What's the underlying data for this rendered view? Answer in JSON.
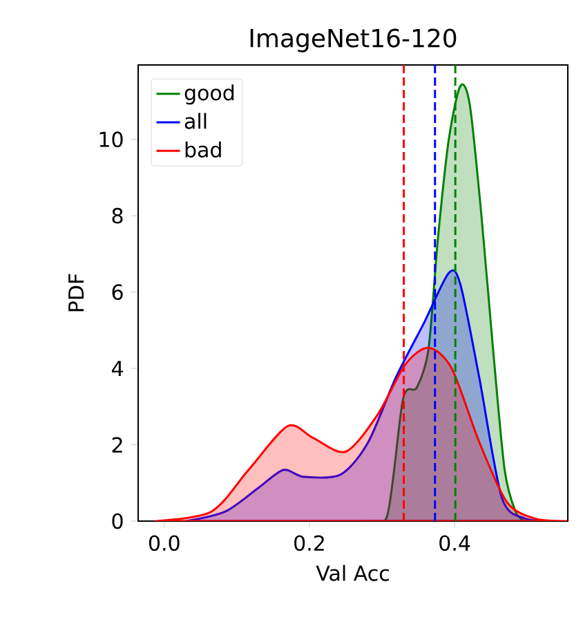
{
  "chart_data": {
    "type": "area",
    "title": "ImageNet16-120",
    "xlabel": "Val Acc",
    "ylabel": "PDF",
    "xlim": [
      -0.036,
      0.556
    ],
    "ylim": [
      0,
      11.95
    ],
    "xticks": [
      {
        "value": 0,
        "label": "0.0"
      },
      {
        "value": 0.2,
        "label": "0.2"
      },
      {
        "value": 0.4,
        "label": "0.4"
      }
    ],
    "yticks": [
      0,
      2,
      4,
      6,
      8,
      10
    ],
    "legend": "top left",
    "grid": false,
    "series": [
      {
        "name": "good",
        "color": "#008000",
        "x": [
          0.275,
          0.307,
          0.329,
          0.348,
          0.364,
          0.377,
          0.392,
          0.408,
          0.421,
          0.437,
          0.453,
          0.469,
          0.484,
          0.497
        ],
        "values": [
          0,
          0.13,
          3.2,
          3.5,
          4.5,
          7.4,
          10.0,
          11.4,
          10.9,
          8.0,
          4.5,
          1.34,
          0.25,
          0
        ]
      },
      {
        "name": "all",
        "color": "#0000ff",
        "x": [
          0.03,
          0.084,
          0.129,
          0.164,
          0.192,
          0.243,
          0.281,
          0.319,
          0.358,
          0.392,
          0.408,
          0.434,
          0.465,
          0.497,
          0.535
        ],
        "values": [
          0,
          0.25,
          0.86,
          1.34,
          1.16,
          1.22,
          2.07,
          3.76,
          5.2,
          6.5,
          6.2,
          3.76,
          0.62,
          0.07,
          0
        ]
      },
      {
        "name": "bad",
        "color": "#ff0000",
        "x": [
          -0.011,
          0.065,
          0.116,
          0.17,
          0.205,
          0.25,
          0.294,
          0.332,
          0.364,
          0.396,
          0.434,
          0.472,
          0.51,
          0.554
        ],
        "values": [
          0,
          0.25,
          1.34,
          2.49,
          2.18,
          1.82,
          2.79,
          4.1,
          4.54,
          4.0,
          2.07,
          0.5,
          0.07,
          0
        ]
      }
    ],
    "ref_lines": [
      {
        "axis": "x",
        "value": 0.33,
        "color": "#ff0000",
        "line_style": "dashed"
      },
      {
        "axis": "x",
        "value": 0.373,
        "color": "#0000ff",
        "line_style": "dashed"
      },
      {
        "axis": "x",
        "value": 0.401,
        "color": "#008000",
        "line_style": "dashed"
      }
    ]
  }
}
